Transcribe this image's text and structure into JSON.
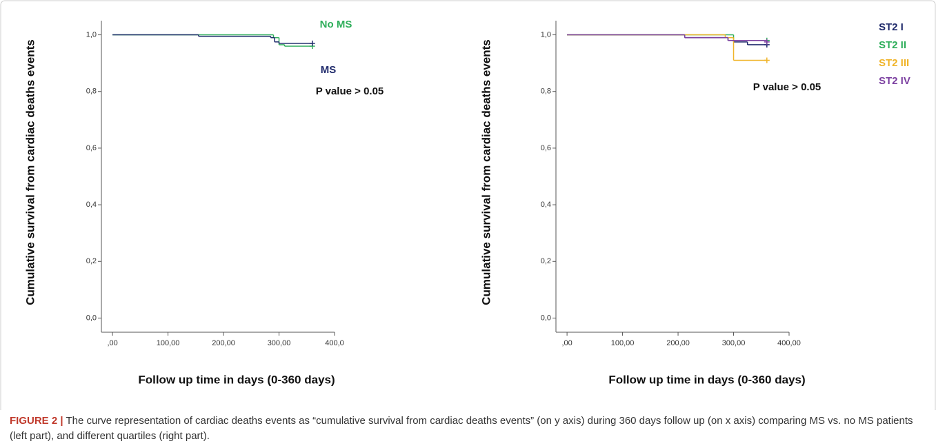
{
  "chart_data": [
    {
      "type": "line",
      "drawstyle": "steps-post",
      "y_label": "Cumulative survival from cardiac deaths events",
      "x_label": "Follow up time in days (0-360 days)",
      "annotation": "P value > 0.05",
      "xlim": [
        -20,
        400
      ],
      "ylim": [
        -0.05,
        1.05
      ],
      "xticks": [
        {
          "value": 0,
          "label": ",00"
        },
        {
          "value": 100,
          "label": "100,00"
        },
        {
          "value": 200,
          "label": "200,00"
        },
        {
          "value": 300,
          "label": "300,00"
        },
        {
          "value": 400,
          "label": "400,0"
        }
      ],
      "yticks": [
        {
          "value": 0,
          "label": "0,0"
        },
        {
          "value": 0.2,
          "label": "0,2"
        },
        {
          "value": 0.4,
          "label": "0,4"
        },
        {
          "value": 0.6,
          "label": "0,6"
        },
        {
          "value": 0.8,
          "label": "0,8"
        },
        {
          "value": 1,
          "label": "1,0"
        }
      ],
      "series": [
        {
          "name": "No MS",
          "color": "#2eae5a",
          "x": [
            0,
            290,
            300,
            310,
            360
          ],
          "values": [
            1,
            0.99,
            0.965,
            0.96,
            0.96
          ]
        },
        {
          "name": "MS",
          "color": "#1f2a6b",
          "x": [
            0,
            155,
            285,
            292,
            300,
            360
          ],
          "values": [
            1,
            0.995,
            0.99,
            0.975,
            0.97,
            0.97
          ]
        }
      ]
    },
    {
      "type": "line",
      "drawstyle": "steps-post",
      "y_label": "Cumulative survival from cardiac deaths events",
      "x_label": "Follow up time in days (0-360 days)",
      "annotation": "P value > 0.05",
      "xlim": [
        -20,
        400
      ],
      "ylim": [
        -0.05,
        1.05
      ],
      "xticks": [
        {
          "value": 0,
          "label": ",00"
        },
        {
          "value": 100,
          "label": "100,00"
        },
        {
          "value": 200,
          "label": "200,00"
        },
        {
          "value": 300,
          "label": "300,00"
        },
        {
          "value": 400,
          "label": "400,00"
        }
      ],
      "yticks": [
        {
          "value": 0,
          "label": "0,0"
        },
        {
          "value": 0.2,
          "label": "0,2"
        },
        {
          "value": 0.4,
          "label": "0,4"
        },
        {
          "value": 0.6,
          "label": "0,6"
        },
        {
          "value": 0.8,
          "label": "0,8"
        },
        {
          "value": 1,
          "label": "1,0"
        }
      ],
      "series": [
        {
          "name": "ST2 I",
          "color": "#1f2a6b",
          "x": [
            0,
            212,
            290,
            300,
            325,
            360
          ],
          "values": [
            1,
            0.99,
            0.98,
            0.975,
            0.965,
            0.965
          ]
        },
        {
          "name": "ST2 II",
          "color": "#2eae5a",
          "x": [
            0,
            290,
            300,
            360
          ],
          "values": [
            1,
            1,
            0.98,
            0.98
          ]
        },
        {
          "name": "ST2 III",
          "color": "#f0b429",
          "x": [
            0,
            285,
            300,
            360
          ],
          "values": [
            1,
            0.99,
            0.91,
            0.91
          ]
        },
        {
          "name": "ST2 IV",
          "color": "#7b3fa0",
          "x": [
            0,
            212,
            290,
            360
          ],
          "values": [
            1,
            0.99,
            0.98,
            0.975
          ]
        }
      ]
    }
  ],
  "caption": {
    "label": "FIGURE 2 |",
    "text": "The curve representation of cardiac deaths events as “cumulative survival from cardiac deaths events” (on y axis) during 360 days follow up (on x axis) comparing MS vs. no MS patients (left part), and different quartiles (right part)."
  }
}
